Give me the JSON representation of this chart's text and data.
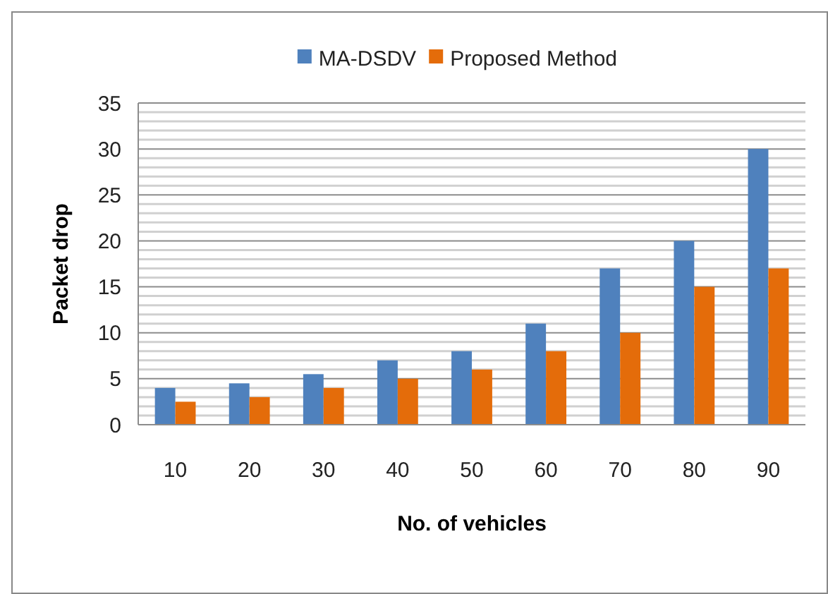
{
  "chart_data": {
    "type": "bar",
    "xlabel": "No. of vehicles",
    "ylabel": "Packet drop",
    "categories": [
      "10",
      "20",
      "30",
      "40",
      "50",
      "60",
      "70",
      "80",
      "90"
    ],
    "series": [
      {
        "name": "MA-DSDV",
        "color": "#4f81bd",
        "values": [
          4,
          4.5,
          5.5,
          7,
          8,
          11,
          17,
          20,
          30
        ]
      },
      {
        "name": "Proposed Method",
        "color": "#e46c0a",
        "values": [
          2.5,
          3,
          4,
          5,
          6,
          8,
          10,
          15,
          17
        ]
      }
    ],
    "ylim": [
      0,
      35
    ],
    "yticks": [
      0,
      5,
      10,
      15,
      20,
      25,
      30,
      35
    ],
    "grid": "y",
    "legend": "top"
  }
}
